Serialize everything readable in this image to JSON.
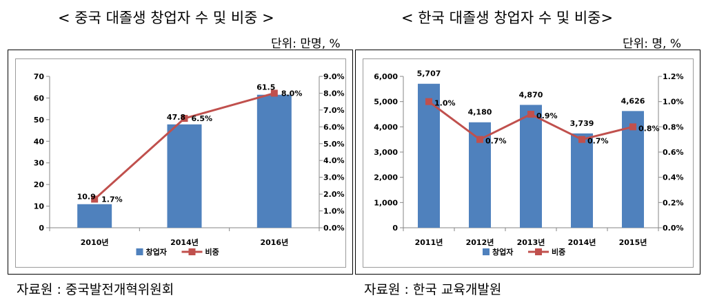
{
  "left": {
    "title": "< 중국 대졸생 창업자 수 및 비중 >",
    "unit": "단위: 만명, %",
    "source": "자료원 : 중국발전개혁위원회"
  },
  "right": {
    "title": "< 한국 대졸생 창업자 수 및 비중>",
    "unit": "단위: 명, %",
    "source": "자료원 : 한국 교육개발원"
  },
  "colors": {
    "bar": "#4f81bd",
    "line": "#c0504d",
    "axis": "#868686"
  },
  "chart_data": [
    {
      "type": "bar",
      "title": "< 중국 대졸생 창업자 수 및 비중 >",
      "categories": [
        "2010년",
        "2014년",
        "2016년"
      ],
      "series": [
        {
          "name": "창업자",
          "type": "bar",
          "axis": "left",
          "values": [
            10.9,
            47.8,
            61.5
          ],
          "labels": [
            "10.9",
            "47.8",
            "61.5"
          ]
        },
        {
          "name": "비중",
          "type": "line",
          "axis": "right",
          "values": [
            1.7,
            6.5,
            8.0
          ],
          "labels": [
            "1.7%",
            "6.5%",
            "8.0%"
          ]
        }
      ],
      "ylim": [
        0,
        70
      ],
      "y_ticks": [
        "0",
        "10",
        "20",
        "30",
        "40",
        "50",
        "60",
        "70"
      ],
      "y2lim": [
        0,
        9
      ],
      "y2_ticks": [
        "0.0%",
        "1.0%",
        "2.0%",
        "3.0%",
        "4.0%",
        "5.0%",
        "6.0%",
        "7.0%",
        "8.0%",
        "9.0%"
      ],
      "legend": [
        "창업자",
        "비중"
      ],
      "legend_position": "bottom"
    },
    {
      "type": "bar",
      "title": "< 한국 대졸생 창업자 수 및 비중>",
      "categories": [
        "2011년",
        "2012년",
        "2013년",
        "2014년",
        "2015년"
      ],
      "series": [
        {
          "name": "창업자",
          "type": "bar",
          "axis": "left",
          "values": [
            5707,
            4180,
            4870,
            3739,
            4626
          ],
          "labels": [
            "5,707",
            "4,180",
            "4,870",
            "3,739",
            "4,626"
          ]
        },
        {
          "name": "비중",
          "type": "line",
          "axis": "right",
          "values": [
            1.0,
            0.7,
            0.9,
            0.7,
            0.8
          ],
          "labels": [
            "1.0%",
            "0.7%",
            "0.9%",
            "0.7%",
            "0.8%"
          ]
        }
      ],
      "ylim": [
        0,
        6000
      ],
      "y_ticks": [
        "0",
        "1,000",
        "2,000",
        "3,000",
        "4,000",
        "5,000",
        "6,000"
      ],
      "y2lim": [
        0,
        1.2
      ],
      "y2_ticks": [
        "0.0%",
        "0.2%",
        "0.4%",
        "0.6%",
        "0.8%",
        "1.0%",
        "1.2%"
      ],
      "legend": [
        "창업자",
        "비중"
      ],
      "legend_position": "bottom"
    }
  ]
}
